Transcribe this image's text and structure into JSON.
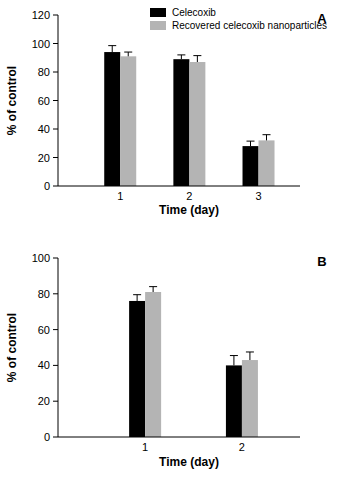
{
  "chart_data": [
    {
      "type": "bar",
      "title": "A",
      "x_label": "Time (day)",
      "y_label": "% of control",
      "categories": [
        "1",
        "2",
        "3"
      ],
      "series": [
        {
          "name": "Celecoxib",
          "color": "#000000",
          "values": [
            94,
            89,
            28
          ],
          "errors": [
            4.5,
            3,
            3.5
          ]
        },
        {
          "name": "Recovered celecoxib nanoparticles",
          "color": "#b4b4b4",
          "values": [
            91,
            87,
            32
          ],
          "errors": [
            3,
            4.5,
            4
          ]
        }
      ],
      "ylim": [
        0,
        120
      ],
      "yticks": [
        0,
        20,
        40,
        60,
        80,
        100,
        120
      ],
      "grid": false,
      "legend": "top"
    },
    {
      "type": "bar",
      "title": "B",
      "x_label": "Time (day)",
      "y_label": "% of control",
      "categories": [
        "1",
        "2"
      ],
      "series": [
        {
          "color": "#000000",
          "values": [
            76,
            40
          ],
          "errors": [
            3.5,
            5.5
          ]
        },
        {
          "color": "#b4b4b4",
          "values": [
            81,
            43
          ],
          "errors": [
            3,
            4.5
          ]
        }
      ],
      "ylim": [
        0,
        100
      ],
      "yticks": [
        0,
        20,
        40,
        60,
        80,
        100
      ],
      "grid": false
    }
  ]
}
